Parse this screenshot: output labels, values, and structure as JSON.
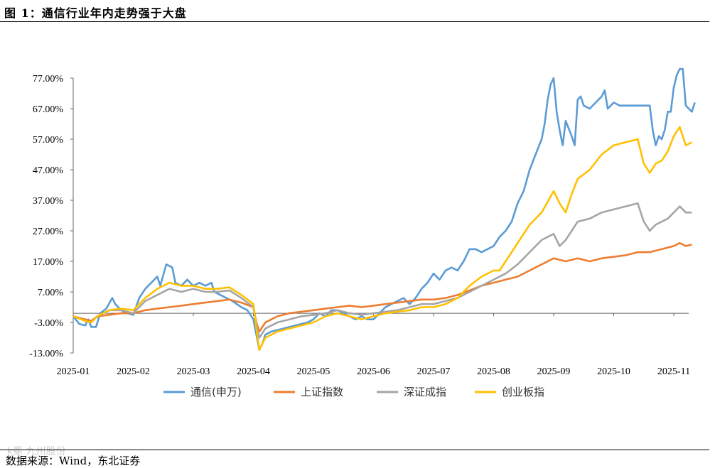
{
  "figure": {
    "title": "图 1：通信行业年内走势强于大盘",
    "source": "数据来源：Wind，东北证券",
    "watermark": "k冕 九州股份"
  },
  "chart_data": {
    "type": "line",
    "title": "图 1：通信行业年内走势强于大盘",
    "xlabel": "",
    "ylabel": "",
    "x_ticks": [
      "2025-01",
      "2025-02",
      "2025-03",
      "2025-04",
      "2025-05",
      "2025-06",
      "2025-07",
      "2025-08",
      "2025-09",
      "2025-10",
      "2025-11"
    ],
    "x_range": [
      0,
      10.3
    ],
    "y_ticks": [
      "77.00%",
      "67.00%",
      "57.00%",
      "47.00%",
      "37.00%",
      "27.00%",
      "17.00%",
      "7.00%",
      "-3.00%",
      "-13.00%"
    ],
    "ylim": [
      -13,
      77
    ],
    "y_unit": "%",
    "grid": false,
    "legend_position": "bottom",
    "series": [
      {
        "name": "通信(申万)",
        "color": "#5B9BD5",
        "points": [
          [
            0,
            -1
          ],
          [
            0.1,
            -3.5
          ],
          [
            0.2,
            -4
          ],
          [
            0.25,
            -2
          ],
          [
            0.3,
            -4.5
          ],
          [
            0.38,
            -4.5
          ],
          [
            0.45,
            0
          ],
          [
            0.55,
            1.5
          ],
          [
            0.65,
            5
          ],
          [
            0.7,
            3
          ],
          [
            0.8,
            1
          ],
          [
            0.9,
            0
          ],
          [
            1,
            -0.5
          ],
          [
            1.1,
            5
          ],
          [
            1.2,
            8
          ],
          [
            1.3,
            10
          ],
          [
            1.4,
            12
          ],
          [
            1.45,
            9
          ],
          [
            1.55,
            16
          ],
          [
            1.65,
            15
          ],
          [
            1.7,
            10
          ],
          [
            1.8,
            9
          ],
          [
            1.9,
            11
          ],
          [
            2,
            9
          ],
          [
            2.1,
            10
          ],
          [
            2.2,
            9
          ],
          [
            2.3,
            10
          ],
          [
            2.35,
            7
          ],
          [
            2.45,
            6
          ],
          [
            2.55,
            5
          ],
          [
            2.65,
            4
          ],
          [
            2.8,
            2
          ],
          [
            2.9,
            1
          ],
          [
            3,
            -2
          ],
          [
            3.05,
            -7
          ],
          [
            3.1,
            -12
          ],
          [
            3.15,
            -10
          ],
          [
            3.2,
            -7
          ],
          [
            3.3,
            -6
          ],
          [
            3.5,
            -5
          ],
          [
            3.7,
            -4
          ],
          [
            3.9,
            -3
          ],
          [
            4,
            -2
          ],
          [
            4.1,
            0
          ],
          [
            4.2,
            -1
          ],
          [
            4.3,
            1
          ],
          [
            4.4,
            1
          ],
          [
            4.5,
            0
          ],
          [
            4.6,
            -1
          ],
          [
            4.7,
            -2
          ],
          [
            4.8,
            -1
          ],
          [
            4.9,
            -2
          ],
          [
            5,
            -2
          ],
          [
            5.1,
            0
          ],
          [
            5.2,
            2
          ],
          [
            5.3,
            3
          ],
          [
            5.4,
            4
          ],
          [
            5.5,
            5
          ],
          [
            5.6,
            3
          ],
          [
            5.7,
            5
          ],
          [
            5.8,
            8
          ],
          [
            5.9,
            10
          ],
          [
            6,
            13
          ],
          [
            6.1,
            11
          ],
          [
            6.2,
            14
          ],
          [
            6.3,
            15
          ],
          [
            6.4,
            14
          ],
          [
            6.5,
            17
          ],
          [
            6.6,
            21
          ],
          [
            6.7,
            21
          ],
          [
            6.8,
            20
          ],
          [
            6.9,
            21
          ],
          [
            7,
            22
          ],
          [
            7.1,
            25
          ],
          [
            7.2,
            27
          ],
          [
            7.3,
            30
          ],
          [
            7.4,
            36
          ],
          [
            7.5,
            40
          ],
          [
            7.6,
            47
          ],
          [
            7.7,
            52
          ],
          [
            7.8,
            57
          ],
          [
            7.85,
            62
          ],
          [
            7.9,
            70
          ],
          [
            7.95,
            75
          ],
          [
            8,
            77
          ],
          [
            8.05,
            66
          ],
          [
            8.1,
            60
          ],
          [
            8.15,
            55
          ],
          [
            8.2,
            63
          ],
          [
            8.3,
            58
          ],
          [
            8.35,
            55
          ],
          [
            8.4,
            70
          ],
          [
            8.45,
            71
          ],
          [
            8.5,
            68
          ],
          [
            8.6,
            67
          ],
          [
            8.7,
            69
          ],
          [
            8.8,
            71
          ],
          [
            8.85,
            73
          ],
          [
            8.9,
            67
          ],
          [
            9,
            69
          ],
          [
            9.1,
            68
          ],
          [
            9.3,
            68
          ],
          [
            9.5,
            68
          ],
          [
            9.6,
            68
          ],
          [
            9.65,
            60
          ],
          [
            9.7,
            55
          ],
          [
            9.75,
            58
          ],
          [
            9.8,
            57
          ],
          [
            9.85,
            60
          ],
          [
            9.9,
            66
          ],
          [
            9.95,
            66
          ],
          [
            10,
            74
          ],
          [
            10.05,
            78
          ],
          [
            10.1,
            80
          ],
          [
            10.15,
            80
          ],
          [
            10.2,
            68
          ],
          [
            10.25,
            67
          ],
          [
            10.3,
            66
          ],
          [
            10.35,
            69
          ]
        ]
      },
      {
        "name": "上证指数",
        "color": "#ED7D31",
        "points": [
          [
            0,
            -1
          ],
          [
            0.2,
            -2
          ],
          [
            0.3,
            -2.5
          ],
          [
            0.4,
            -1
          ],
          [
            0.6,
            -0.5
          ],
          [
            0.8,
            0
          ],
          [
            1,
            0
          ],
          [
            1.2,
            1
          ],
          [
            1.4,
            1.5
          ],
          [
            1.6,
            2
          ],
          [
            1.8,
            2.5
          ],
          [
            2,
            3
          ],
          [
            2.2,
            3.5
          ],
          [
            2.4,
            4
          ],
          [
            2.6,
            4.5
          ],
          [
            2.8,
            3.5
          ],
          [
            3,
            2
          ],
          [
            3.05,
            -3
          ],
          [
            3.1,
            -6
          ],
          [
            3.2,
            -3
          ],
          [
            3.4,
            -1
          ],
          [
            3.6,
            0
          ],
          [
            3.8,
            0.5
          ],
          [
            4,
            1
          ],
          [
            4.2,
            1.5
          ],
          [
            4.4,
            2
          ],
          [
            4.6,
            2.5
          ],
          [
            4.8,
            2
          ],
          [
            5,
            2.5
          ],
          [
            5.2,
            3
          ],
          [
            5.4,
            3.5
          ],
          [
            5.6,
            4
          ],
          [
            5.8,
            4.5
          ],
          [
            6,
            4.5
          ],
          [
            6.2,
            5
          ],
          [
            6.4,
            6
          ],
          [
            6.6,
            7.5
          ],
          [
            6.8,
            9
          ],
          [
            7,
            10
          ],
          [
            7.2,
            11
          ],
          [
            7.4,
            12
          ],
          [
            7.6,
            14
          ],
          [
            7.8,
            16
          ],
          [
            8,
            18
          ],
          [
            8.2,
            17
          ],
          [
            8.4,
            18
          ],
          [
            8.6,
            17
          ],
          [
            8.8,
            18
          ],
          [
            9,
            18.5
          ],
          [
            9.2,
            19
          ],
          [
            9.4,
            20
          ],
          [
            9.6,
            20
          ],
          [
            9.8,
            21
          ],
          [
            10,
            22
          ],
          [
            10.1,
            23
          ],
          [
            10.2,
            22
          ],
          [
            10.3,
            22.5
          ]
        ]
      },
      {
        "name": "深证成指",
        "color": "#A5A5A5",
        "points": [
          [
            0,
            -1
          ],
          [
            0.2,
            -2.5
          ],
          [
            0.3,
            -3
          ],
          [
            0.4,
            -1
          ],
          [
            0.6,
            1
          ],
          [
            0.8,
            1
          ],
          [
            1,
            0
          ],
          [
            1.2,
            4
          ],
          [
            1.4,
            6
          ],
          [
            1.6,
            8
          ],
          [
            1.8,
            7
          ],
          [
            2,
            8
          ],
          [
            2.2,
            7
          ],
          [
            2.4,
            7
          ],
          [
            2.6,
            7.5
          ],
          [
            2.8,
            5
          ],
          [
            3,
            2
          ],
          [
            3.05,
            -4
          ],
          [
            3.1,
            -8
          ],
          [
            3.2,
            -5
          ],
          [
            3.4,
            -3
          ],
          [
            3.6,
            -2
          ],
          [
            3.8,
            -1
          ],
          [
            4,
            -0.5
          ],
          [
            4.2,
            0
          ],
          [
            4.4,
            1
          ],
          [
            4.6,
            0
          ],
          [
            4.8,
            -0.5
          ],
          [
            5,
            0
          ],
          [
            5.2,
            0.5
          ],
          [
            5.4,
            1
          ],
          [
            5.6,
            2
          ],
          [
            5.8,
            3
          ],
          [
            6,
            3
          ],
          [
            6.2,
            4
          ],
          [
            6.4,
            5
          ],
          [
            6.6,
            7
          ],
          [
            6.8,
            9
          ],
          [
            7,
            11
          ],
          [
            7.2,
            13
          ],
          [
            7.4,
            16
          ],
          [
            7.6,
            20
          ],
          [
            7.8,
            24
          ],
          [
            8,
            26
          ],
          [
            8.1,
            22
          ],
          [
            8.2,
            24
          ],
          [
            8.3,
            27
          ],
          [
            8.4,
            30
          ],
          [
            8.6,
            31
          ],
          [
            8.8,
            33
          ],
          [
            9,
            34
          ],
          [
            9.2,
            35
          ],
          [
            9.4,
            36
          ],
          [
            9.5,
            30
          ],
          [
            9.6,
            27
          ],
          [
            9.7,
            29
          ],
          [
            9.8,
            30
          ],
          [
            9.9,
            31
          ],
          [
            10,
            33
          ],
          [
            10.1,
            35
          ],
          [
            10.2,
            33
          ],
          [
            10.3,
            33
          ]
        ]
      },
      {
        "name": "创业板指",
        "color": "#FFC000",
        "points": [
          [
            0,
            -1
          ],
          [
            0.2,
            -2.5
          ],
          [
            0.3,
            -3
          ],
          [
            0.4,
            -1
          ],
          [
            0.6,
            1
          ],
          [
            0.8,
            1.5
          ],
          [
            1,
            1
          ],
          [
            1.2,
            5
          ],
          [
            1.4,
            8
          ],
          [
            1.6,
            10
          ],
          [
            1.8,
            9
          ],
          [
            2,
            9
          ],
          [
            2.2,
            8
          ],
          [
            2.4,
            8
          ],
          [
            2.6,
            8.5
          ],
          [
            2.8,
            6
          ],
          [
            3,
            3
          ],
          [
            3.05,
            -5
          ],
          [
            3.1,
            -12
          ],
          [
            3.2,
            -8
          ],
          [
            3.4,
            -6
          ],
          [
            3.6,
            -5
          ],
          [
            3.8,
            -4
          ],
          [
            4,
            -3
          ],
          [
            4.2,
            -1
          ],
          [
            4.4,
            0
          ],
          [
            4.6,
            -1
          ],
          [
            4.8,
            -2
          ],
          [
            5,
            -1
          ],
          [
            5.2,
            0
          ],
          [
            5.4,
            0.5
          ],
          [
            5.6,
            1
          ],
          [
            5.8,
            2
          ],
          [
            6,
            2
          ],
          [
            6.2,
            3
          ],
          [
            6.4,
            5
          ],
          [
            6.6,
            9
          ],
          [
            6.8,
            12
          ],
          [
            7,
            14
          ],
          [
            7.1,
            14
          ],
          [
            7.2,
            17
          ],
          [
            7.3,
            20
          ],
          [
            7.4,
            23
          ],
          [
            7.6,
            29
          ],
          [
            7.8,
            33
          ],
          [
            8,
            40
          ],
          [
            8.1,
            36
          ],
          [
            8.2,
            33
          ],
          [
            8.3,
            39
          ],
          [
            8.4,
            44
          ],
          [
            8.6,
            47
          ],
          [
            8.8,
            52
          ],
          [
            9,
            55
          ],
          [
            9.2,
            56
          ],
          [
            9.4,
            57
          ],
          [
            9.5,
            49
          ],
          [
            9.6,
            46
          ],
          [
            9.7,
            49
          ],
          [
            9.8,
            50
          ],
          [
            9.9,
            53
          ],
          [
            10,
            58
          ],
          [
            10.1,
            61
          ],
          [
            10.2,
            55
          ],
          [
            10.3,
            56
          ]
        ]
      }
    ]
  }
}
